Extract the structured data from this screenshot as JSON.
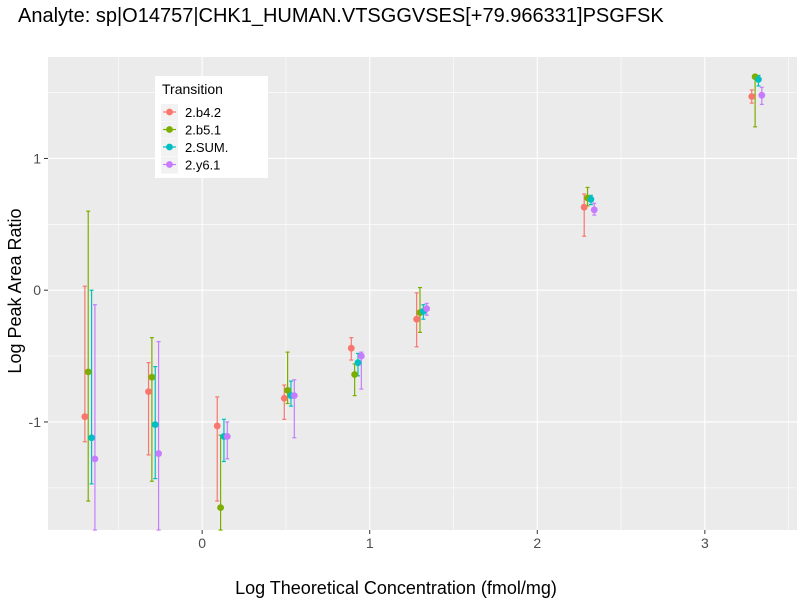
{
  "chart_data": {
    "type": "scatter",
    "title": "Analyte: sp|O14757|CHK1_HUMAN.VTSGGVSES[+79.966331]PSGFSK",
    "xlabel": "Log Theoretical Concentration (fmol/mg)",
    "ylabel": "Log Peak Area Ratio",
    "xlim": [
      -0.92,
      3.55
    ],
    "ylim": [
      -1.82,
      1.77
    ],
    "x_ticks": [
      0,
      1,
      2,
      3
    ],
    "y_ticks": [
      -1,
      0,
      1
    ],
    "x_tick_labels": [
      "0",
      "1",
      "2",
      "3"
    ],
    "y_tick_labels": [
      "-1",
      "0",
      "1"
    ],
    "grid": true,
    "legend": {
      "title": "Transition",
      "placement": "top-left"
    },
    "series": [
      {
        "name": "2.b4.2",
        "color": "#F8766D",
        "x": [
          -0.7,
          -0.32,
          0.09,
          0.49,
          0.89,
          1.28,
          2.28,
          3.28
        ],
        "y": [
          -0.96,
          -0.77,
          -1.03,
          -0.82,
          -0.44,
          -0.22,
          0.63,
          1.47
        ],
        "ymin": [
          -1.15,
          -1.25,
          -1.6,
          -0.98,
          -0.53,
          -0.43,
          0.41,
          1.42
        ],
        "ymax": [
          0.03,
          -0.55,
          -0.81,
          -0.72,
          -0.36,
          -0.02,
          0.73,
          1.52
        ]
      },
      {
        "name": "2.b5.1",
        "color": "#7CAE00",
        "x": [
          -0.68,
          -0.3,
          0.11,
          0.51,
          0.91,
          1.3,
          2.3,
          3.3
        ],
        "y": [
          -0.62,
          -0.66,
          -1.65,
          -0.76,
          -0.64,
          -0.17,
          0.7,
          1.62
        ],
        "ymin": [
          -1.6,
          -1.45,
          -1.82,
          -0.86,
          -0.8,
          -0.32,
          0.64,
          1.24
        ],
        "ymax": [
          0.6,
          -0.36,
          -1.1,
          -0.47,
          -0.56,
          0.02,
          0.78,
          1.63
        ]
      },
      {
        "name": "2.SUM.",
        "color": "#00BFC4",
        "x": [
          -0.66,
          -0.28,
          0.13,
          0.53,
          0.93,
          1.32,
          2.32,
          3.32
        ],
        "y": [
          -1.12,
          -1.02,
          -1.11,
          -0.8,
          -0.55,
          -0.16,
          0.69,
          1.6
        ],
        "ymin": [
          -1.47,
          -1.43,
          -1.3,
          -0.88,
          -0.65,
          -0.22,
          0.65,
          1.55
        ],
        "ymax": [
          0.0,
          -0.58,
          -0.98,
          -0.69,
          -0.48,
          -0.11,
          0.72,
          1.63
        ]
      },
      {
        "name": "2.y6.1",
        "color": "#C77CFF",
        "x": [
          -0.64,
          -0.26,
          0.15,
          0.55,
          0.95,
          1.34,
          2.34,
          3.34
        ],
        "y": [
          -1.28,
          -1.24,
          -1.11,
          -0.8,
          -0.5,
          -0.14,
          0.61,
          1.48
        ],
        "ymin": [
          -1.82,
          -1.82,
          -1.28,
          -1.12,
          -0.75,
          -0.19,
          0.57,
          1.41
        ],
        "ymax": [
          -0.11,
          -0.39,
          -1.0,
          -0.68,
          -0.47,
          -0.1,
          0.66,
          1.54
        ]
      }
    ]
  }
}
